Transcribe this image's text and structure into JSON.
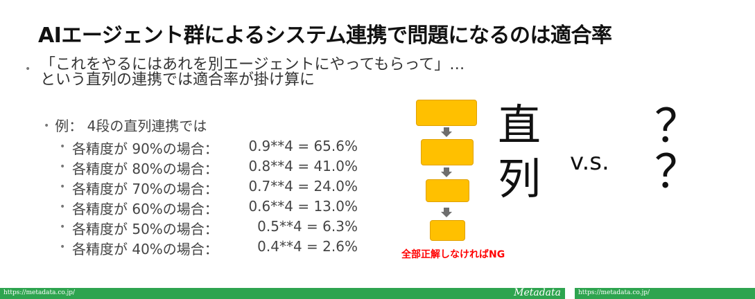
{
  "slide": {
    "title": "AIエージェント群によるシステム連携で問題になるのは適合率",
    "bullet_line1": "「これをやるにはあれを別エージェントにやってもらって」…",
    "bullet_line2": "という直列の連携では適合率が掛け算に",
    "example_heading": "例： 4段の直列連携では",
    "rows": [
      {
        "label": "各精度が 90%の場合：",
        "value": "0.9**4 = 65.6%"
      },
      {
        "label": "各精度が 80%の場合：",
        "value": "0.8**4 = 41.0%"
      },
      {
        "label": "各精度が 70%の場合：",
        "value": "0.7**4 = 24.0%"
      },
      {
        "label": "各精度が 60%の場合：",
        "value": "0.6**4 = 13.0%"
      },
      {
        "label": "各精度が 50%の場合：",
        "value": "0.5**4 =   6.3%"
      },
      {
        "label": "各精度が 40%の場合：",
        "value": "0.4**4 =   2.6%"
      }
    ],
    "flow_caption": "全部正解しなければNG",
    "chokuretsu_1": "直",
    "chokuretsu_2": "列",
    "vs": "v.s.",
    "question_1": "？",
    "question_2": "？"
  },
  "footer": {
    "url_left": "https://metadata.co.jp/",
    "brand": "Metadata",
    "url_right": "https://metadata.co.jp/"
  },
  "colors": {
    "flow_box": "#ffc000",
    "footer": "#2ea44f",
    "caption": "#ff0000"
  }
}
